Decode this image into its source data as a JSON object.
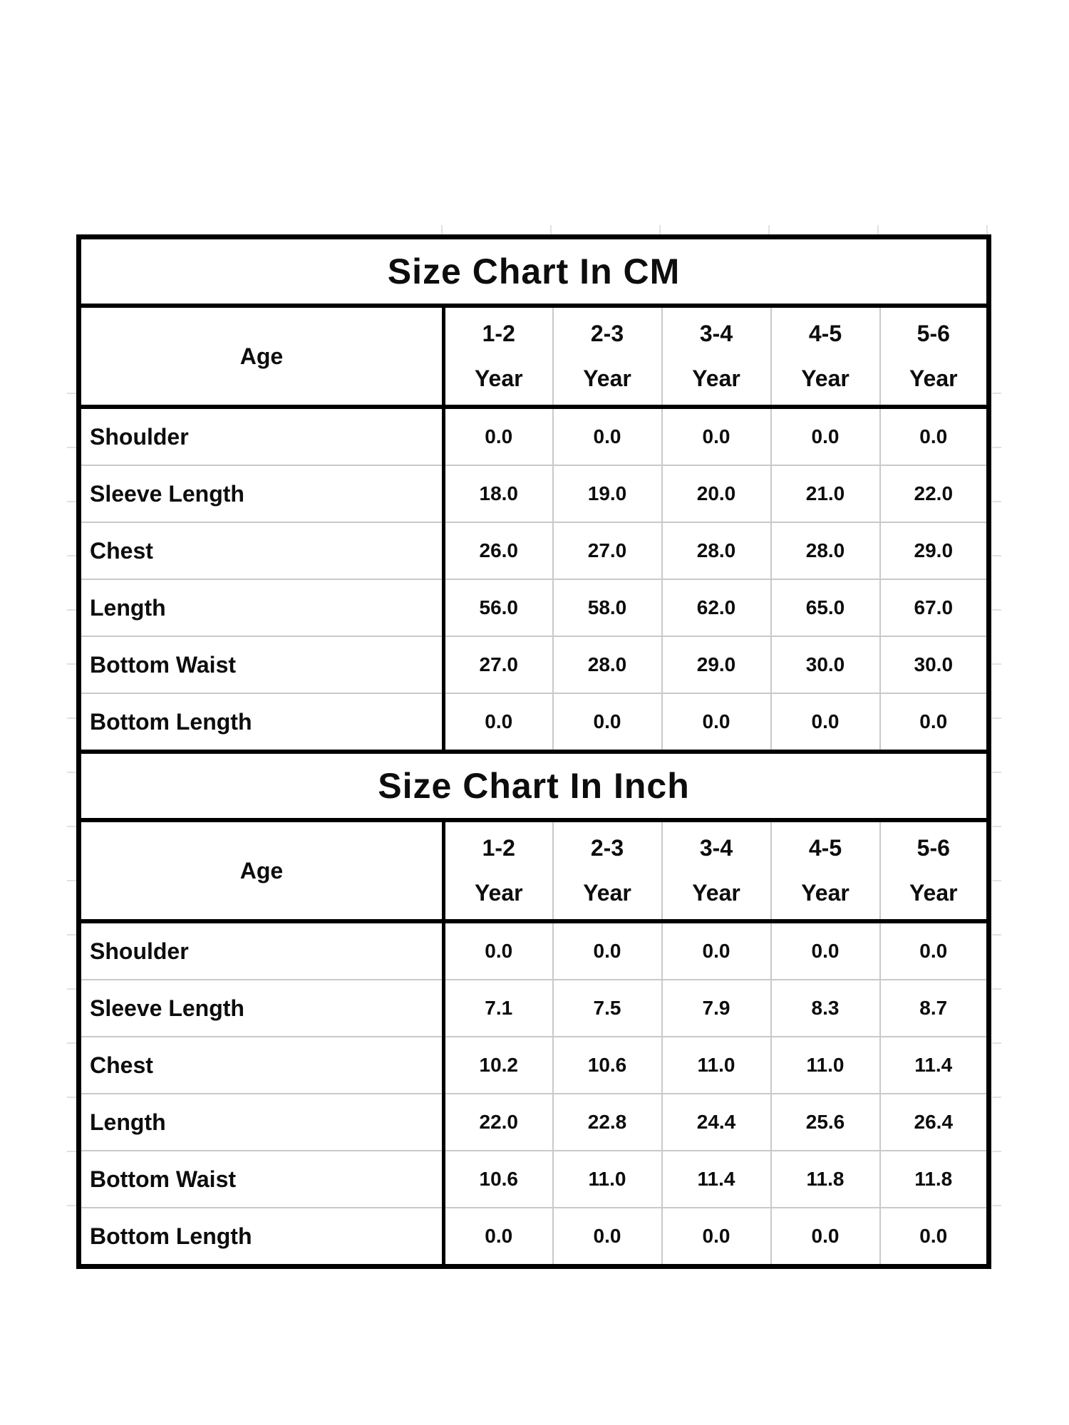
{
  "page": {
    "background": "#ffffff",
    "grid_tick_color": "#d4d4d4",
    "text_color": "#0d0d0d"
  },
  "tables": [
    {
      "title": "Size Chart In CM",
      "age_label": "Age",
      "columns": [
        {
          "range": "1-2",
          "unit": "Year"
        },
        {
          "range": "2-3",
          "unit": "Year"
        },
        {
          "range": "3-4",
          "unit": "Year"
        },
        {
          "range": "4-5",
          "unit": "Year"
        },
        {
          "range": "5-6",
          "unit": "Year"
        }
      ],
      "rows": [
        {
          "label": "Shoulder",
          "values": [
            "0.0",
            "0.0",
            "0.0",
            "0.0",
            "0.0"
          ]
        },
        {
          "label": "Sleeve Length",
          "values": [
            "18.0",
            "19.0",
            "20.0",
            "21.0",
            "22.0"
          ]
        },
        {
          "label": "Chest",
          "values": [
            "26.0",
            "27.0",
            "28.0",
            "28.0",
            "29.0"
          ]
        },
        {
          "label": "Length",
          "values": [
            "56.0",
            "58.0",
            "62.0",
            "65.0",
            "67.0"
          ]
        },
        {
          "label": "Bottom Waist",
          "values": [
            "27.0",
            "28.0",
            "29.0",
            "30.0",
            "30.0"
          ]
        },
        {
          "label": "Bottom Length",
          "values": [
            "0.0",
            "0.0",
            "0.0",
            "0.0",
            "0.0"
          ]
        }
      ]
    },
    {
      "title": "Size Chart In Inch",
      "age_label": "Age",
      "columns": [
        {
          "range": "1-2",
          "unit": "Year"
        },
        {
          "range": "2-3",
          "unit": "Year"
        },
        {
          "range": "3-4",
          "unit": "Year"
        },
        {
          "range": "4-5",
          "unit": "Year"
        },
        {
          "range": "5-6",
          "unit": "Year"
        }
      ],
      "rows": [
        {
          "label": "Shoulder",
          "values": [
            "0.0",
            "0.0",
            "0.0",
            "0.0",
            "0.0"
          ]
        },
        {
          "label": "Sleeve Length",
          "values": [
            "7.1",
            "7.5",
            "7.9",
            "8.3",
            "8.7"
          ]
        },
        {
          "label": "Chest",
          "values": [
            "10.2",
            "10.6",
            "11.0",
            "11.0",
            "11.4"
          ]
        },
        {
          "label": "Length",
          "values": [
            "22.0",
            "22.8",
            "24.4",
            "25.6",
            "26.4"
          ]
        },
        {
          "label": "Bottom Waist",
          "values": [
            "10.6",
            "11.0",
            "11.4",
            "11.8",
            "11.8"
          ]
        },
        {
          "label": "Bottom Length",
          "values": [
            "0.0",
            "0.0",
            "0.0",
            "0.0",
            "0.0"
          ]
        }
      ]
    }
  ],
  "chart_data": [
    {
      "type": "table",
      "title": "Size Chart In CM",
      "unit": "cm",
      "columns": [
        "Age",
        "1-2 Year",
        "2-3 Year",
        "3-4 Year",
        "4-5 Year",
        "5-6 Year"
      ],
      "rows": [
        [
          "Shoulder",
          0.0,
          0.0,
          0.0,
          0.0,
          0.0
        ],
        [
          "Sleeve Length",
          18.0,
          19.0,
          20.0,
          21.0,
          22.0
        ],
        [
          "Chest",
          26.0,
          27.0,
          28.0,
          28.0,
          29.0
        ],
        [
          "Length",
          56.0,
          58.0,
          62.0,
          65.0,
          67.0
        ],
        [
          "Bottom Waist",
          27.0,
          28.0,
          29.0,
          30.0,
          30.0
        ],
        [
          "Bottom Length",
          0.0,
          0.0,
          0.0,
          0.0,
          0.0
        ]
      ]
    },
    {
      "type": "table",
      "title": "Size Chart In Inch",
      "unit": "inch",
      "columns": [
        "Age",
        "1-2 Year",
        "2-3 Year",
        "3-4 Year",
        "4-5 Year",
        "5-6 Year"
      ],
      "rows": [
        [
          "Shoulder",
          0.0,
          0.0,
          0.0,
          0.0,
          0.0
        ],
        [
          "Sleeve Length",
          7.1,
          7.5,
          7.9,
          8.3,
          8.7
        ],
        [
          "Chest",
          10.2,
          10.6,
          11.0,
          11.0,
          11.4
        ],
        [
          "Length",
          22.0,
          22.8,
          24.4,
          25.6,
          26.4
        ],
        [
          "Bottom Waist",
          10.6,
          11.0,
          11.4,
          11.8,
          11.8
        ],
        [
          "Bottom Length",
          0.0,
          0.0,
          0.0,
          0.0,
          0.0
        ]
      ]
    }
  ]
}
